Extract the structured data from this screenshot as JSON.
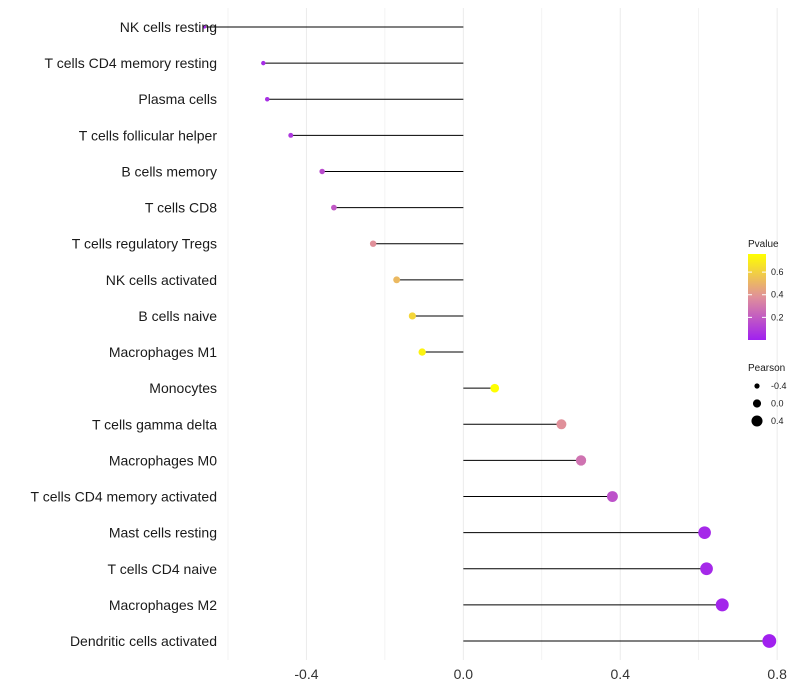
{
  "chart_data": {
    "type": "lollipop",
    "title": "",
    "xlabel": "",
    "ylabel": "",
    "xlim": [
      -0.6,
      0.82
    ],
    "x_ticks": [
      -0.4,
      0.0,
      0.4,
      0.8
    ],
    "x_tick_labels": [
      "-0.4",
      "0.0",
      "0.4",
      "0.8"
    ],
    "baseline": 0,
    "grid": true,
    "points": [
      {
        "category": "NK cells resting",
        "pearson": -0.66,
        "pvalue": 0.02
      },
      {
        "category": "T cells CD4 memory resting",
        "pearson": -0.51,
        "pvalue": 0.04
      },
      {
        "category": "Plasma cells",
        "pearson": -0.5,
        "pvalue": 0.05
      },
      {
        "category": "T cells follicular helper",
        "pearson": -0.44,
        "pvalue": 0.08
      },
      {
        "category": "B cells memory",
        "pearson": -0.36,
        "pvalue": 0.15
      },
      {
        "category": "T cells CD8",
        "pearson": -0.33,
        "pvalue": 0.19
      },
      {
        "category": "T cells regulatory  Tregs ",
        "pearson": -0.23,
        "pvalue": 0.38
      },
      {
        "category": "NK cells activated",
        "pearson": -0.17,
        "pvalue": 0.52
      },
      {
        "category": "B cells naive",
        "pearson": -0.13,
        "pvalue": 0.62
      },
      {
        "category": "Macrophages M1",
        "pearson": -0.105,
        "pvalue": 0.72
      },
      {
        "category": "Monocytes",
        "pearson": 0.08,
        "pvalue": 0.76
      },
      {
        "category": "T cells gamma delta",
        "pearson": 0.25,
        "pvalue": 0.38
      },
      {
        "category": "Macrophages M0",
        "pearson": 0.3,
        "pvalue": 0.28
      },
      {
        "category": "T cells CD4 memory activated",
        "pearson": 0.38,
        "pvalue": 0.17
      },
      {
        "category": "Mast cells resting",
        "pearson": 0.615,
        "pvalue": 0.03
      },
      {
        "category": "T cells CD4 naive",
        "pearson": 0.62,
        "pvalue": 0.03
      },
      {
        "category": "Macrophages M2",
        "pearson": 0.66,
        "pvalue": 0.02
      },
      {
        "category": "Dendritic cells activated",
        "pearson": 0.78,
        "pvalue": 0.005
      }
    ],
    "color_legend": {
      "title": "Pvalue",
      "range": [
        0,
        0.76
      ],
      "ticks": [
        0.2,
        0.4,
        0.6
      ],
      "tick_labels": [
        "0.2",
        "0.4",
        "0.6"
      ],
      "low_color": "#a020f0",
      "mid_color": "#e0909a",
      "high_color": "#ffff00"
    },
    "size_legend": {
      "title": "Pearson",
      "values": [
        -0.4,
        0.0,
        0.4
      ],
      "labels": [
        "-0.4",
        "0.0",
        "0.4"
      ],
      "color": "#000000"
    },
    "colors": {
      "segment": "#000000",
      "grid": "#ebebeb"
    }
  }
}
